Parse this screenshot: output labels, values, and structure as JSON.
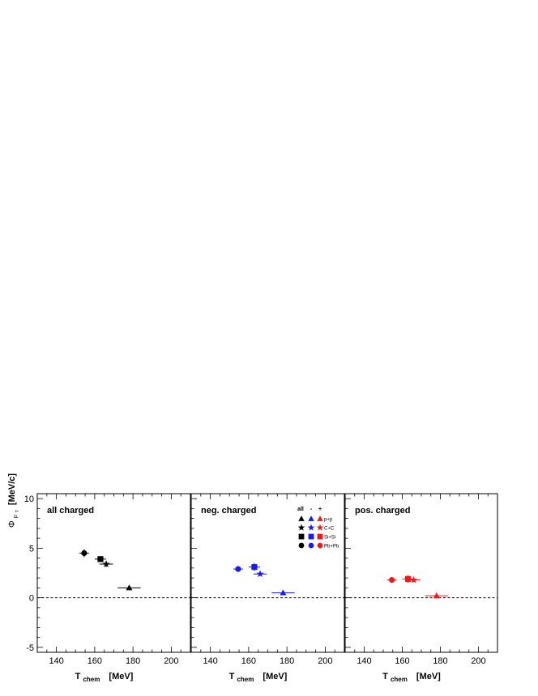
{
  "chart_data": [
    {
      "type": "scatter",
      "title": "all charged",
      "xlabel_main": "T",
      "xlabel_sub": "chem",
      "xlabel_unit": "[MeV]",
      "ylabel_main": "Φ",
      "ylabel_sub": "p",
      "ylabel_subsub": "T",
      "ylabel_unit": "[MeV/c]",
      "xlim": [
        130,
        210
      ],
      "ylim": [
        -5.5,
        10.5
      ],
      "xticks": [
        "140",
        "160",
        "180",
        "200"
      ],
      "yticks": [
        "10",
        "5",
        "0",
        "-5"
      ],
      "reference_line": 0,
      "color": "#000000",
      "series": [
        {
          "marker": "circle",
          "x": 154.5,
          "y": 4.5,
          "xerr": 2.5,
          "yerr": 0.4
        },
        {
          "marker": "square",
          "x": 163,
          "y": 3.9,
          "xerr": 3,
          "yerr": 0.3
        },
        {
          "marker": "star",
          "x": 166,
          "y": 3.4,
          "xerr": 3.5,
          "yerr": 0.3
        },
        {
          "marker": "triangle",
          "x": 178,
          "y": 1.0,
          "xerr": 6,
          "yerr": 0.2
        }
      ]
    },
    {
      "type": "scatter",
      "title": "neg. charged",
      "xlabel_main": "T",
      "xlabel_sub": "chem",
      "xlabel_unit": "[MeV]",
      "xlim": [
        130,
        210
      ],
      "ylim": [
        -5.5,
        10.5
      ],
      "xticks": [
        "140",
        "160",
        "180",
        "200"
      ],
      "reference_line": 0,
      "color": "#1a1aee",
      "series": [
        {
          "marker": "circle",
          "x": 154.5,
          "y": 2.9,
          "xerr": 2.5,
          "yerr": 0.2
        },
        {
          "marker": "square",
          "x": 163,
          "y": 3.1,
          "xerr": 3,
          "yerr": 0.4
        },
        {
          "marker": "star",
          "x": 166,
          "y": 2.4,
          "xerr": 3.5,
          "yerr": 0.2
        },
        {
          "marker": "triangle",
          "x": 178,
          "y": 0.5,
          "xerr": 6,
          "yerr": 0.1
        }
      ]
    },
    {
      "type": "scatter",
      "title": "pos. charged",
      "xlabel_main": "T",
      "xlabel_sub": "chem",
      "xlabel_unit": "[MeV]",
      "xlim": [
        130,
        210
      ],
      "ylim": [
        -5.5,
        10.5
      ],
      "xticks": [
        "140",
        "160",
        "180",
        "200"
      ],
      "reference_line": 0,
      "color": "#ee1a1a",
      "series": [
        {
          "marker": "circle",
          "x": 154.5,
          "y": 1.8,
          "xerr": 2.5,
          "yerr": 0.3
        },
        {
          "marker": "square",
          "x": 163,
          "y": 1.9,
          "xerr": 3,
          "yerr": 0.4
        },
        {
          "marker": "star",
          "x": 166,
          "y": 1.8,
          "xerr": 3.5,
          "yerr": 0.2
        },
        {
          "marker": "triangle",
          "x": 178,
          "y": 0.2,
          "xerr": 6,
          "yerr": 0.1
        }
      ]
    }
  ],
  "legend": {
    "headers": [
      "all",
      "-",
      "+"
    ],
    "colors": [
      "#000000",
      "#1a1aee",
      "#ee1a1a"
    ],
    "rows": [
      {
        "marker": "triangle",
        "label": "p+p"
      },
      {
        "marker": "star",
        "label": "C+C"
      },
      {
        "marker": "square",
        "label": "Si+Si"
      },
      {
        "marker": "circle",
        "label": "Pb+Pb"
      }
    ]
  }
}
